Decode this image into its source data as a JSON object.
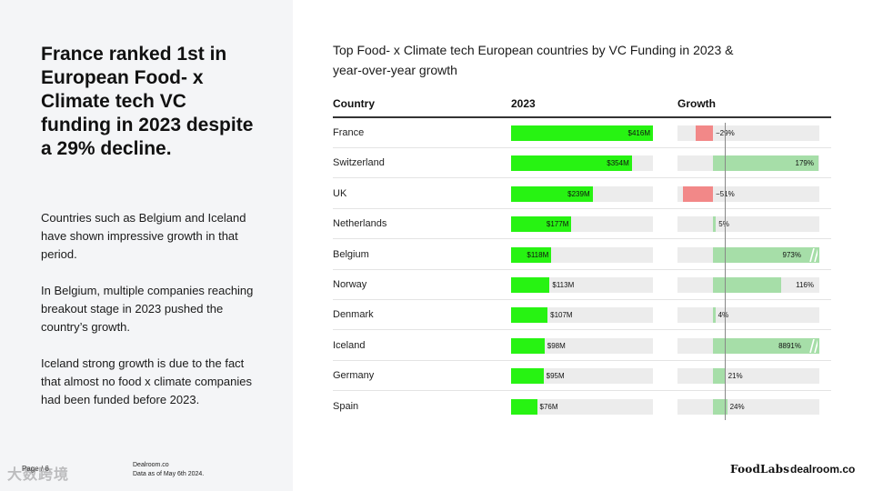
{
  "left": {
    "headline": "France ranked 1st in European Food- x Climate tech VC funding in 2023 despite a 29% decline.",
    "paragraphs": [
      "Countries such as Belgium and Iceland have shown impressive growth in that period.",
      "In Belgium, multiple companies reaching breakout stage in 2023 pushed the country’s growth.",
      "Iceland strong growth is due to the fact that almost no food x climate companies had been funded before 2023."
    ]
  },
  "footer": {
    "page": "Page / 6",
    "source_line1": "Dealroom.co",
    "source_line2": "Data as of May 6th 2024.",
    "watermark": "大数跨境",
    "logo_foodlabs": "FoodLabs",
    "logo_dealroom": "dealroom.co"
  },
  "chart_data": {
    "type": "table",
    "title": "Top Food- x Climate tech European countries by VC Funding in 2023 & year-over-year growth",
    "columns": [
      "Country",
      "2023",
      "Growth"
    ],
    "funding_unit": "$M",
    "funding_axis_max": 416,
    "growth_scale_max_percent": 180,
    "growth_scale_min_percent": -60,
    "colors": {
      "funding": "#27f312",
      "growth_positive": "#a6dea8",
      "growth_negative": "#f28888"
    },
    "rows": [
      {
        "country": "France",
        "funding": 416,
        "funding_label": "$416M",
        "growth": -29,
        "growth_label": "−29%",
        "capped": false
      },
      {
        "country": "Switzerland",
        "funding": 354,
        "funding_label": "$354M",
        "growth": 179,
        "growth_label": "179%",
        "capped": false
      },
      {
        "country": "UK",
        "funding": 239,
        "funding_label": "$239M",
        "growth": -51,
        "growth_label": "−51%",
        "capped": false
      },
      {
        "country": "Netherlands",
        "funding": 177,
        "funding_label": "$177M",
        "growth": 5,
        "growth_label": "5%",
        "capped": false
      },
      {
        "country": "Belgium",
        "funding": 118,
        "funding_label": "$118M",
        "growth": 973,
        "growth_label": "973%",
        "capped": true
      },
      {
        "country": "Norway",
        "funding": 113,
        "funding_label": "$113M",
        "growth": 116,
        "growth_label": "116%",
        "capped": false
      },
      {
        "country": "Denmark",
        "funding": 107,
        "funding_label": "$107M",
        "growth": 4,
        "growth_label": "4%",
        "capped": false
      },
      {
        "country": "Iceland",
        "funding": 98,
        "funding_label": "$98M",
        "growth": 8891,
        "growth_label": "8891%",
        "capped": true
      },
      {
        "country": "Germany",
        "funding": 95,
        "funding_label": "$95M",
        "growth": 21,
        "growth_label": "21%",
        "capped": false
      },
      {
        "country": "Spain",
        "funding": 76,
        "funding_label": "$76M",
        "growth": 24,
        "growth_label": "24%",
        "capped": false
      }
    ]
  }
}
